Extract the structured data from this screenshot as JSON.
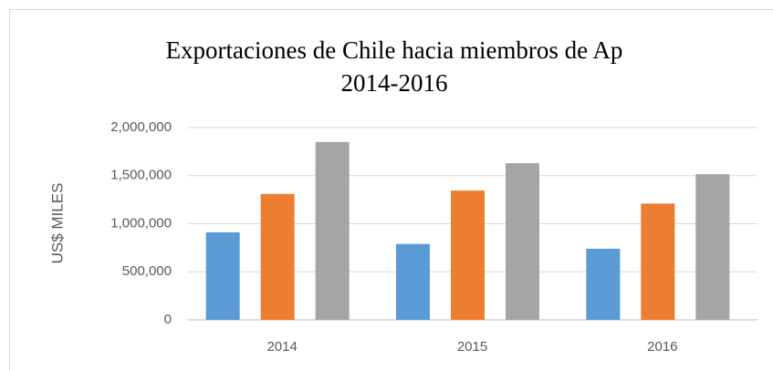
{
  "chart_data": {
    "type": "bar",
    "title": "Exportaciones de Chile hacia miembros de Ap",
    "subtitle": "2014-2016",
    "y_label": "US$ MILES",
    "categories": [
      "2014",
      "2015",
      "2016"
    ],
    "series": [
      {
        "color": "#5b9bd5",
        "values": [
          910000,
          790000,
          740000
        ]
      },
      {
        "color": "#ed7d31",
        "values": [
          1310000,
          1345000,
          1210000
        ]
      },
      {
        "color": "#a5a5a5",
        "values": [
          1850000,
          1630000,
          1515000
        ]
      }
    ],
    "ylim": [
      0,
      2000000
    ],
    "yticks": [
      0,
      {
        "value": 500000,
        "label": "500,000"
      },
      {
        "value": 1000000,
        "label": "1,000,000"
      },
      {
        "value": 1500000,
        "label": "1,500,000"
      },
      {
        "value": 2000000,
        "label": "2,000,000"
      }
    ],
    "grid": true
  }
}
